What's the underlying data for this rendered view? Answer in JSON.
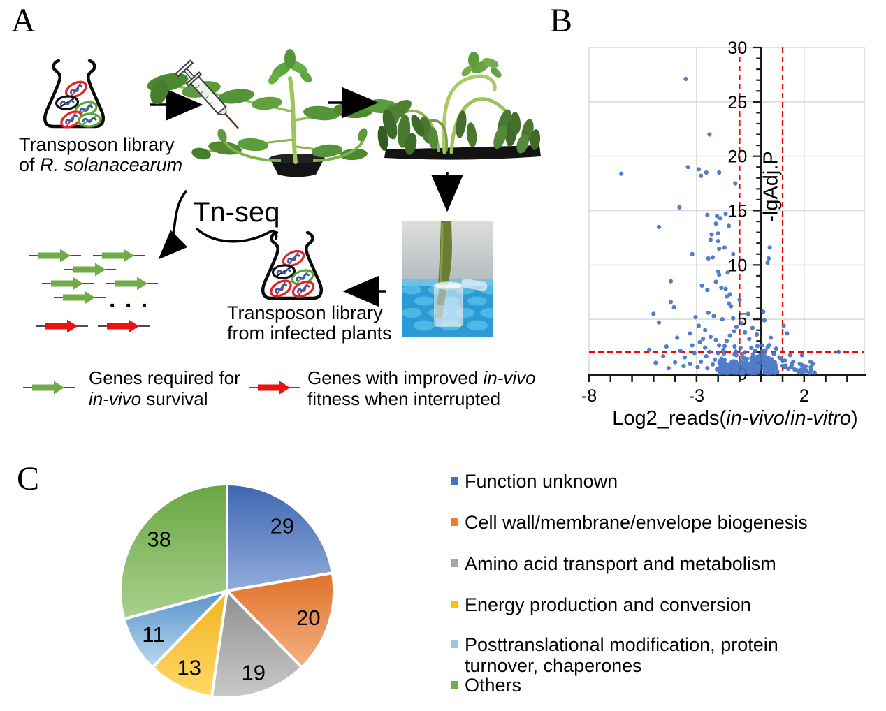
{
  "panelA": {
    "label": "A",
    "flask1_caption": {
      "line1": "Transposon library",
      "line2_prefix": "of ",
      "line2_italic": "R. solanacearum"
    },
    "tnseq": "Tn-seq",
    "reads_ellipsis": ". . .",
    "flask2_caption": {
      "line1": "Transposon library",
      "line2": "from infected plants"
    },
    "legend_green": {
      "line1": "Genes required for",
      "line2_italic": "in-vivo",
      "line2_rest": " survival"
    },
    "legend_red": {
      "line1_prefix": "Genes with improved ",
      "line1_italic": "in-vivo",
      "line2": "fitness when interrupted"
    },
    "colors": {
      "gene_forward": "#6FAC47",
      "gene_disrupted": "#EE1111",
      "bacteria_red": "#E32226",
      "bacteria_green": "#5BA438",
      "bacteria_black": "#101010",
      "dna_blue": "#3A5BA9"
    }
  },
  "panelB": {
    "label": "B"
  },
  "panelC": {
    "label": "C",
    "legend": [
      {
        "label": "Function unknown",
        "color": "#4472C4"
      },
      {
        "label": "Cell wall/membrane/envelope biogenesis",
        "color": "#ED7D31"
      },
      {
        "label": "Amino acid transport and metabolism",
        "color": "#A5A5A5"
      },
      {
        "label": "Energy production and conversion",
        "color": "#FFC000"
      },
      {
        "label": "Posttranslational modification, protein turnover, chaperones",
        "color": "#9DC3E6"
      },
      {
        "label": "Others",
        "color": "#70AD47"
      }
    ]
  },
  "chart_data": [
    {
      "type": "scatter",
      "title": "",
      "xlabel_parts": [
        {
          "t": "Log2_reads(",
          "i": false
        },
        {
          "t": "in-vivo",
          "i": true
        },
        {
          "t": "/",
          "i": false
        },
        {
          "t": "in-vitro",
          "i": true
        },
        {
          "t": ")",
          "i": false
        }
      ],
      "ylabel": "-lgAdj.P",
      "xlim": [
        -8,
        4.8
      ],
      "ylim": [
        0,
        30
      ],
      "x_tick_labels": [
        {
          "v": -8,
          "t": "-8"
        },
        {
          "v": -3,
          "t": "-3"
        },
        {
          "v": 2,
          "t": "2"
        }
      ],
      "y_tick_labels": [
        {
          "v": 0,
          "t": "0"
        },
        {
          "v": 5,
          "t": "5"
        },
        {
          "v": 10,
          "t": "10"
        },
        {
          "v": 15,
          "t": "15"
        },
        {
          "v": 20,
          "t": "20"
        },
        {
          "v": 25,
          "t": "25"
        },
        {
          "v": 30,
          "t": "30"
        }
      ],
      "minor_tick_step": 1,
      "gridline_step": 5,
      "x_gridlines": [
        -3,
        2
      ],
      "grid_color": "#D9D9D9",
      "axis_color": "#1a1a1a",
      "point_color": "#4472C4",
      "thresholds": {
        "vlines_x": [
          -1,
          1
        ],
        "hline_y": 2,
        "color": "#FF0000",
        "style": "dashed"
      },
      "points": [
        [
          -3.5,
          27.1
        ],
        [
          -2.4,
          22.0
        ],
        [
          -6.5,
          18.4
        ],
        [
          -3.4,
          19.0
        ],
        [
          -2.9,
          18.8
        ],
        [
          -2.8,
          18.2
        ],
        [
          -2.55,
          18.5
        ],
        [
          -1.95,
          18.5
        ],
        [
          -1.2,
          17.5
        ],
        [
          -3.8,
          15.3
        ],
        [
          -2.5,
          14.6
        ],
        [
          -2.05,
          14.5
        ],
        [
          -1.9,
          14.3
        ],
        [
          -1.65,
          14.7
        ],
        [
          -2.1,
          13.8
        ],
        [
          -1.5,
          13.6
        ],
        [
          -4.75,
          13.5
        ],
        [
          -2.3,
          12.8
        ],
        [
          -2.0,
          12.9
        ],
        [
          -2.35,
          12.3
        ],
        [
          -2.0,
          12.2
        ],
        [
          -1.7,
          11.6
        ],
        [
          -1.95,
          11.5
        ],
        [
          0.4,
          11.6
        ],
        [
          -3.2,
          11.0
        ],
        [
          -2.45,
          10.6
        ],
        [
          -2.25,
          10.7
        ],
        [
          -1.3,
          11.0
        ],
        [
          0.35,
          10.6
        ],
        [
          0.3,
          10.2
        ],
        [
          -2.0,
          9.4
        ],
        [
          -1.95,
          9.1
        ],
        [
          -1.55,
          9.3
        ],
        [
          -4.2,
          8.5
        ],
        [
          -2.75,
          8.1
        ],
        [
          -2.1,
          8.45
        ],
        [
          -2.5,
          7.7
        ],
        [
          -1.85,
          7.9
        ],
        [
          -1.65,
          7.8
        ],
        [
          -1.45,
          7.3
        ],
        [
          -1.6,
          7.1
        ],
        [
          -4.2,
          6.6
        ],
        [
          -4.05,
          6.1
        ],
        [
          -1.5,
          6.45
        ],
        [
          -1.4,
          6.2
        ],
        [
          -1.0,
          6.8
        ],
        [
          -5.0,
          5.5
        ],
        [
          -4.75,
          4.7
        ],
        [
          -3.05,
          5.2
        ],
        [
          -2.9,
          4.4
        ],
        [
          0.1,
          5.7
        ],
        [
          0.15,
          4.9
        ],
        [
          -0.6,
          5.5
        ],
        [
          -2.45,
          5.6
        ],
        [
          -2.2,
          5.3
        ],
        [
          -1.8,
          5.0
        ],
        [
          -1.3,
          5.1
        ],
        [
          -0.9,
          4.6
        ],
        [
          -1.15,
          4.3
        ],
        [
          -2.6,
          4.0
        ],
        [
          -3.3,
          3.7
        ],
        [
          -3.9,
          3.3
        ],
        [
          -4.4,
          2.5
        ],
        [
          -5.2,
          2.2
        ],
        [
          -2.85,
          2.9
        ],
        [
          -2.6,
          2.4
        ],
        [
          -3.1,
          1.9
        ],
        [
          -3.55,
          1.5
        ],
        [
          -4.0,
          1.05
        ],
        [
          -2.35,
          3.4
        ],
        [
          -2.1,
          3.1
        ],
        [
          -1.95,
          2.6
        ],
        [
          -2.55,
          1.6
        ],
        [
          -2.8,
          1.1
        ],
        [
          -2.25,
          0.85
        ],
        [
          -2.0,
          1.9
        ],
        [
          -1.75,
          2.2
        ],
        [
          -1.6,
          3.0
        ],
        [
          -1.45,
          3.5
        ],
        [
          -1.25,
          3.9
        ],
        [
          1.2,
          3.7
        ],
        [
          1.35,
          1.7
        ],
        [
          1.5,
          1.1
        ],
        [
          1.8,
          0.9
        ],
        [
          1.9,
          1.7
        ],
        [
          2.3,
          1.1
        ],
        [
          2.4,
          0.9
        ],
        [
          2.0,
          0.55
        ],
        [
          3.6,
          2.0
        ],
        [
          1.05,
          4.4
        ],
        [
          0.45,
          3.3
        ],
        [
          0.7,
          2.3
        ],
        [
          0.85,
          1.5
        ],
        [
          1.1,
          0.6
        ],
        [
          1.55,
          0.4
        ],
        [
          2.1,
          0.3
        ],
        [
          -0.4,
          4.2
        ],
        [
          -0.2,
          3.6
        ],
        [
          -0.75,
          3.8
        ],
        [
          -0.55,
          3.2
        ],
        [
          -3.6,
          0.7
        ],
        [
          -4.3,
          0.5
        ],
        [
          -4.9,
          1.0
        ],
        [
          -3.3,
          0.9
        ],
        [
          -2.95,
          0.6
        ],
        [
          -3.75,
          2.1
        ],
        [
          -4.55,
          1.6
        ],
        [
          -3.2,
          2.6
        ],
        [
          -2.7,
          3.2
        ],
        [
          -2.4,
          2.0
        ],
        [
          -2.15,
          1.3
        ],
        [
          -2.5,
          0.5
        ],
        [
          -2.05,
          0.4
        ]
      ],
      "cluster": {
        "seed": 20,
        "count": 430,
        "center_frac": 0.65,
        "x_center": -0.05,
        "center_spread": 0.85,
        "x_min": -1.95,
        "shoulder_width": 1.35,
        "x_max": 0.88,
        "y_scale": 0.6,
        "y_max": 2.7,
        "notch": {
          "x": 0.02,
          "half_width": 0.16,
          "height": 1.45
        },
        "right_tail": {
          "count": 28,
          "x_min": 0.9,
          "x_max": 2.55,
          "y_max": 1.5
        }
      }
    },
    {
      "type": "pie",
      "labels": [
        "Function unknown",
        "Cell wall/membrane/envelope biogenesis",
        "Amino acid transport and metabolism",
        "Energy production and conversion",
        "Posttranslational modification, protein turnover, chaperones",
        "Others"
      ],
      "values": [
        29,
        20,
        19,
        13,
        11,
        38
      ],
      "total": 130,
      "colors_top": [
        "#3E66B0",
        "#E0712A",
        "#8F8F8F",
        "#EFB320",
        "#5694CE",
        "#69A642"
      ],
      "colors_bottom": [
        "#93ACDD",
        "#F4B183",
        "#C9C9C9",
        "#FFD966",
        "#BDD7EE",
        "#A9D18E"
      ],
      "start_angle_deg": 0,
      "direction": "clockwise",
      "label_radius_frac": 0.8,
      "label_color": "#000000",
      "legend_position": "right"
    }
  ]
}
